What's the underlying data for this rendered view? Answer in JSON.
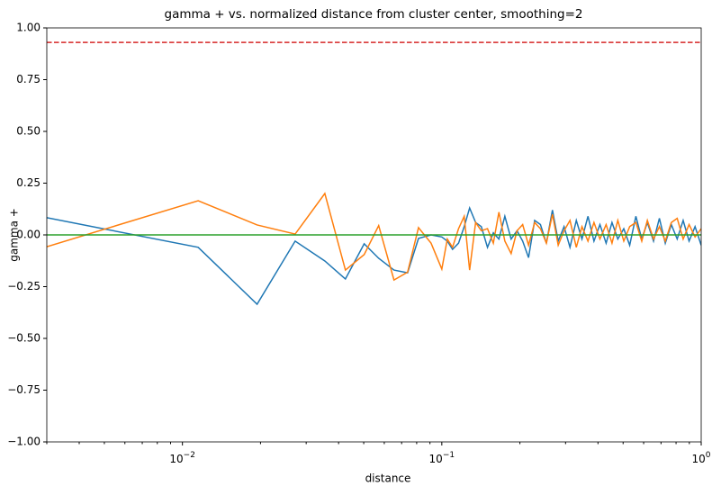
{
  "chart_data": {
    "type": "line",
    "title": "gamma + vs. normalized distance from cluster center, smoothing=2",
    "x_label": "distance",
    "y_label": "gamma +",
    "x_scale": "log",
    "x": [
      0.003,
      0.0115,
      0.0194,
      0.0272,
      0.0354,
      0.0425,
      0.0502,
      0.0571,
      0.0654,
      0.0738,
      0.0813,
      0.0909,
      0.1,
      0.105,
      0.11,
      0.116,
      0.122,
      0.128,
      0.135,
      0.142,
      0.15,
      0.158,
      0.166,
      0.175,
      0.185,
      0.195,
      0.205,
      0.216,
      0.228,
      0.24,
      0.253,
      0.267,
      0.281,
      0.296,
      0.312,
      0.33,
      0.347,
      0.366,
      0.386,
      0.407,
      0.43,
      0.453,
      0.477,
      0.503,
      0.53,
      0.56,
      0.59,
      0.62,
      0.655,
      0.69,
      0.727,
      0.767,
      0.808,
      0.852,
      0.898,
      0.947,
      1.0
    ],
    "series": [
      {
        "color": "#1f77b4",
        "values": [
          0.083,
          -0.06,
          -0.335,
          -0.03,
          -0.126,
          -0.213,
          -0.043,
          -0.113,
          -0.17,
          -0.183,
          -0.017,
          0.0,
          -0.01,
          -0.03,
          -0.07,
          -0.04,
          0.04,
          0.13,
          0.06,
          0.04,
          -0.06,
          0.01,
          -0.02,
          0.09,
          -0.02,
          0.02,
          -0.03,
          -0.11,
          0.07,
          0.05,
          -0.04,
          0.12,
          -0.03,
          0.04,
          -0.06,
          0.07,
          -0.02,
          0.09,
          -0.03,
          0.05,
          -0.04,
          0.06,
          -0.02,
          0.03,
          -0.05,
          0.09,
          -0.02,
          0.06,
          -0.03,
          0.08,
          -0.04,
          0.05,
          -0.02,
          0.07,
          -0.03,
          0.04,
          -0.05
        ]
      },
      {
        "color": "#ff7f0e",
        "values": [
          -0.057,
          0.165,
          0.048,
          0.004,
          0.2,
          -0.17,
          -0.095,
          0.045,
          -0.218,
          -0.18,
          0.035,
          -0.04,
          -0.165,
          -0.02,
          -0.06,
          0.03,
          0.09,
          -0.17,
          0.06,
          0.02,
          0.03,
          -0.04,
          0.11,
          -0.03,
          -0.09,
          0.02,
          0.05,
          -0.05,
          0.06,
          0.03,
          -0.04,
          0.1,
          -0.05,
          0.02,
          0.07,
          -0.06,
          0.04,
          -0.03,
          0.06,
          -0.02,
          0.05,
          -0.04,
          0.07,
          -0.03,
          0.04,
          0.06,
          -0.03,
          0.07,
          -0.02,
          0.04,
          -0.03,
          0.06,
          0.08,
          -0.02,
          0.05,
          -0.01,
          0.03
        ]
      }
    ],
    "hlines": [
      {
        "value": 0.93,
        "color": "#d62728",
        "style": "dashed"
      },
      {
        "value": 0,
        "color": "#2ca02c",
        "style": "solid"
      }
    ],
    "xlim": [
      0.003,
      1
    ],
    "xticks": [
      {
        "value": 0.01,
        "label": "10^−2"
      },
      {
        "value": 0.1,
        "label": "10^−1"
      },
      {
        "value": 1,
        "label": "10^0"
      }
    ],
    "ylim": [
      -1,
      1
    ],
    "yticks": [
      {
        "value": -1,
        "label": "−1.00"
      },
      {
        "value": -0.75,
        "label": "−0.75"
      },
      {
        "value": -0.5,
        "label": "−0.50"
      },
      {
        "value": -0.25,
        "label": "−0.25"
      },
      {
        "value": 0,
        "label": "0.00"
      },
      {
        "value": 0.25,
        "label": "0.25"
      },
      {
        "value": 0.5,
        "label": "0.50"
      },
      {
        "value": 0.75,
        "label": "0.75"
      },
      {
        "value": 1,
        "label": "1.00"
      }
    ]
  }
}
